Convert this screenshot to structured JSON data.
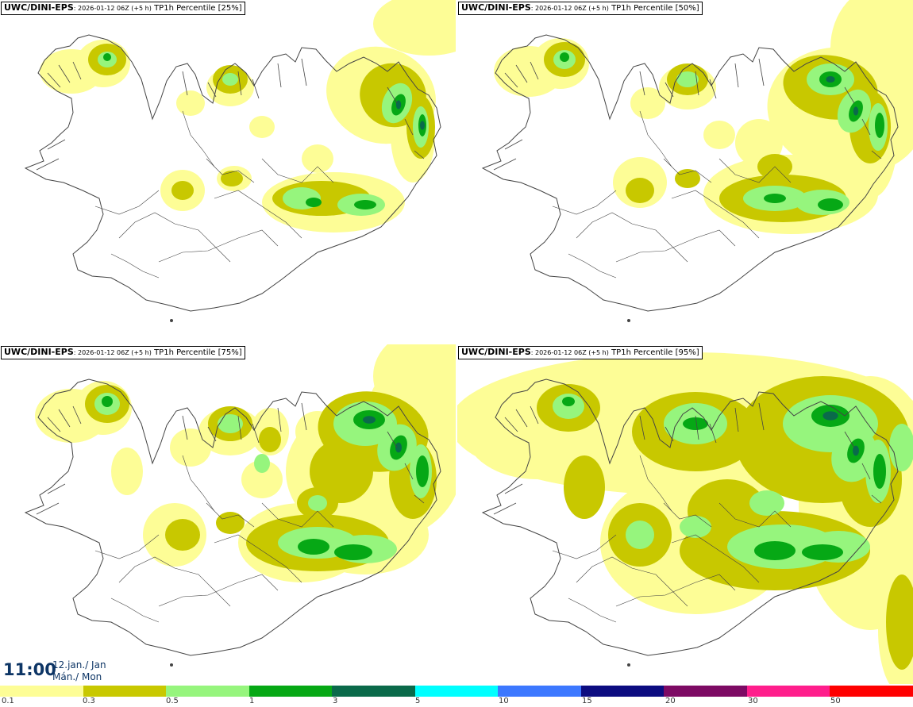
{
  "panels": [
    {
      "id": "p25",
      "model": "UWC/DINI-EPS",
      "run": ": 2026-01-12 06Z (+5 h)",
      "title": "TP1h Percentile [25%]"
    },
    {
      "id": "p50",
      "model": "UWC/DINI-EPS",
      "run": ": 2026-01-12 06Z (+5 h)",
      "title": "TP1h Percentile [50%]"
    },
    {
      "id": "p75",
      "model": "UWC/DINI-EPS",
      "run": ": 2026-01-12 06Z (+5 h)",
      "title": "TP1h Percentile [75%]"
    },
    {
      "id": "p95",
      "model": "UWC/DINI-EPS",
      "run": ": 2026-01-12 06Z (+5 h)",
      "title": "TP1h Percentile [95%]"
    }
  ],
  "time": {
    "clock": "11:00",
    "date_line1": "12.jan./ Jan",
    "date_line2": "Mán./ Mon"
  },
  "legend": {
    "colors": [
      "#fdfd96",
      "#c8c800",
      "#96f57d",
      "#06a815",
      "#0a6a4a",
      "#00ffff",
      "#3c78ff",
      "#0c0c80",
      "#7d0a64",
      "#ff1e8c",
      "#ff0000"
    ],
    "labels": [
      "0.1",
      "0.3",
      "0.5",
      "1",
      "3",
      "5",
      "10",
      "15",
      "20",
      "30",
      "50"
    ]
  },
  "map_colors": {
    "light_yellow": "#fdfd96",
    "olive": "#c8c800",
    "light_green": "#96f57d",
    "green": "#06a815",
    "dark_green": "#0a6a4a",
    "coast": "#444444"
  }
}
